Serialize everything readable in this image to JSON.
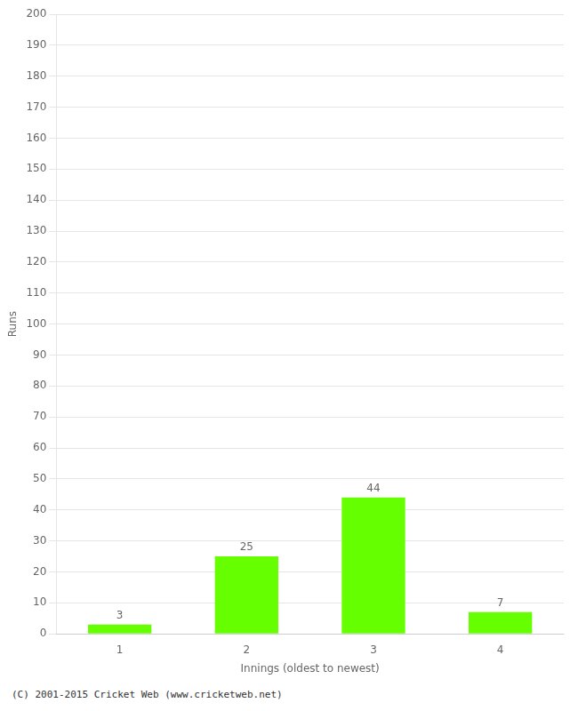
{
  "chart_data": {
    "type": "bar",
    "categories": [
      1,
      2,
      3,
      4
    ],
    "values": [
      3,
      25,
      44,
      7
    ],
    "color": "#66ff00",
    "xlabel": "Innings (oldest to newest)",
    "ylabel": "Runs",
    "ylim": [
      0,
      200
    ],
    "yticks": [
      0,
      10,
      20,
      30,
      40,
      50,
      60,
      70,
      80,
      90,
      100,
      110,
      120,
      130,
      140,
      150,
      160,
      170,
      180,
      190,
      200
    ],
    "grid": true,
    "data_labels": true,
    "annotations": [
      "(C) 2001-2015 Cricket Web (www.cricketweb.net)"
    ]
  }
}
